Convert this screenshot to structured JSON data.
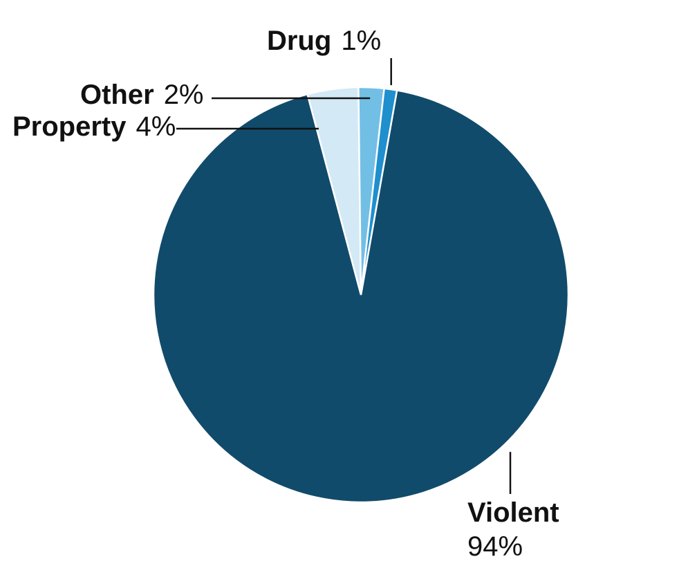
{
  "chart_data": {
    "type": "pie",
    "slices": [
      {
        "name": "Violent",
        "value": 94,
        "label": "94%",
        "color": "#114b6b"
      },
      {
        "name": "Property",
        "value": 4,
        "label": "4%",
        "color": "#d3e9f5"
      },
      {
        "name": "Other",
        "value": 2,
        "label": "2%",
        "color": "#72bfe6"
      },
      {
        "name": "Drug",
        "value": 1,
        "label": "1%",
        "color": "#1f8fce"
      }
    ]
  }
}
